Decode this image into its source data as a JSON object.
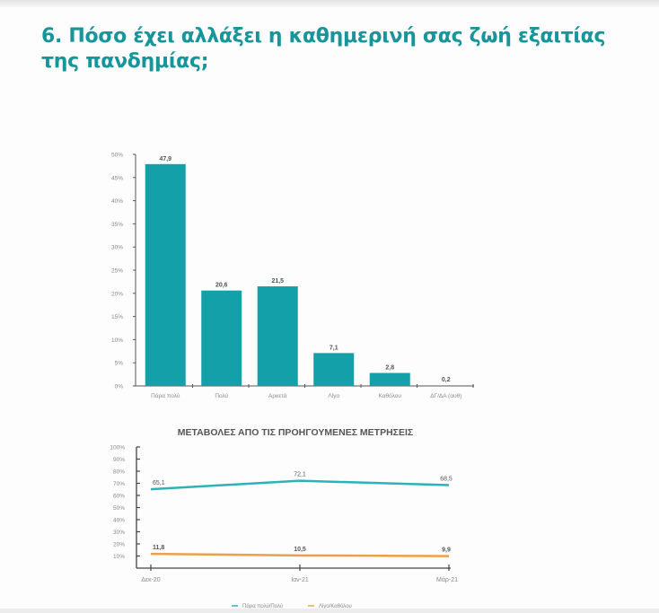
{
  "page": {
    "title_line1": "6. Πόσο έχει αλλάξει η καθημερινή σας ζωή εξαιτίας",
    "title_line2": "της πανδημίας;"
  },
  "colors": {
    "title": "#16959b",
    "bar": "#14a0a8",
    "line_series_1": "#2bb3b8",
    "line_series_2": "#eda04a",
    "axis": "#555555",
    "tick_label": "#888888"
  },
  "bar_chart": {
    "y_ticks": [
      "0%",
      "5%",
      "10%",
      "15%",
      "20%",
      "25%",
      "30%",
      "35%",
      "40%",
      "45%",
      "50%"
    ],
    "categories": [
      "Πάρα πολύ",
      "Πολύ",
      "Αρκετά",
      "Λίγο",
      "Καθόλου",
      "ΔΓ/ΔΑ (αυθ)"
    ],
    "value_labels": [
      "47,9",
      "20,6",
      "21,5",
      "7,1",
      "2,8",
      "0,2"
    ]
  },
  "line_chart": {
    "title": "ΜΕΤΑΒΟΛΕΣ ΑΠΟ ΤΙΣ ΠΡΟΗΓΟΥΜΕΝΕΣ ΜΕΤΡΗΣΕΙΣ",
    "y_ticks": [
      "10%",
      "20%",
      "30%",
      "40%",
      "50%",
      "60%",
      "70%",
      "80%",
      "90%",
      "100%"
    ],
    "x_labels": [
      "Δεκ-20",
      "Ιαν-21",
      "Μάρ-21"
    ],
    "series_1_labels": [
      "65,1",
      "72,1",
      "68,5"
    ],
    "series_2_labels": [
      "11,8",
      "10,5",
      "9,9"
    ],
    "legend": [
      "Πάρα πολύ/Πολύ",
      "Λίγο/Καθόλου"
    ]
  },
  "chart_data": [
    {
      "type": "bar",
      "title": "Πόσο έχει αλλάξει η καθημερινή σας ζωή εξαιτίας της πανδημίας;",
      "categories": [
        "Πάρα πολύ",
        "Πολύ",
        "Αρκετά",
        "Λίγο",
        "Καθόλου",
        "ΔΓ/ΔΑ (αυθ)"
      ],
      "values": [
        47.9,
        20.6,
        21.5,
        7.1,
        2.8,
        0.2
      ],
      "xlabel": "",
      "ylabel": "",
      "ylim": [
        0,
        50
      ],
      "y_ticks": [
        0,
        5,
        10,
        15,
        20,
        25,
        30,
        35,
        40,
        45,
        50
      ],
      "y_format": "percent",
      "grid": false,
      "data_labels": true
    },
    {
      "type": "line",
      "title": "ΜΕΤΑΒΟΛΕΣ ΑΠΟ ΤΙΣ ΠΡΟΗΓΟΥΜΕΝΕΣ ΜΕΤΡΗΣΕΙΣ",
      "categories": [
        "Δεκ-20",
        "Ιαν-21",
        "Μάρ-21"
      ],
      "series": [
        {
          "name": "Πάρα πολύ/Πολύ",
          "values": [
            65.1,
            72.1,
            68.5
          ],
          "color": "#2bb3b8"
        },
        {
          "name": "Λίγο/Καθόλου",
          "values": [
            11.8,
            10.5,
            9.9
          ],
          "color": "#eda04a"
        }
      ],
      "xlabel": "",
      "ylabel": "",
      "ylim": [
        0,
        100
      ],
      "y_ticks": [
        10,
        20,
        30,
        40,
        50,
        60,
        70,
        80,
        90,
        100
      ],
      "y_format": "percent",
      "grid": false,
      "legend_position": "bottom",
      "data_labels": true
    }
  ]
}
